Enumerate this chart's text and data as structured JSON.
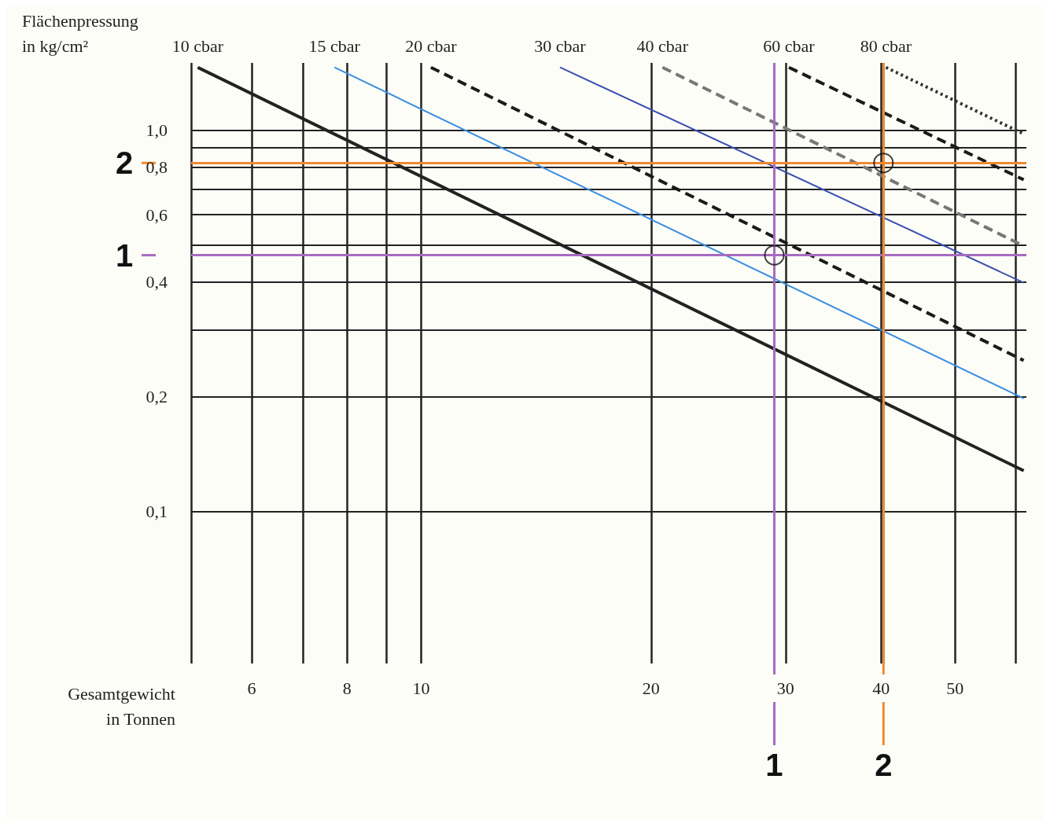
{
  "chart_data": {
    "type": "line",
    "xlabel": "Gesamtgewicht\nin Tonnen",
    "ylabel": "Flächenpressung\nin kg/cm²",
    "log": "xy",
    "grid": true,
    "legend": false,
    "xlim": [
      5,
      62
    ],
    "ylim": [
      0.04,
      1.5
    ],
    "xticks": [
      {
        "value": 5,
        "label": null
      },
      6,
      {
        "value": 7,
        "label": null
      },
      8,
      {
        "value": 9,
        "label": null
      },
      10,
      20,
      30,
      40,
      50,
      {
        "value": 60,
        "label": null
      }
    ],
    "yticks": [
      {
        "value": 0.1,
        "label": "0,1"
      },
      {
        "value": 0.2,
        "label": "0,2"
      },
      {
        "value": 0.3,
        "label": null
      },
      {
        "value": 0.4,
        "label": "0,4"
      },
      {
        "value": 0.5,
        "label": null
      },
      {
        "value": 0.6,
        "label": "0,6"
      },
      {
        "value": 0.7,
        "label": null
      },
      {
        "value": 0.8,
        "label": "0,8"
      },
      {
        "value": 0.9,
        "label": null
      },
      {
        "value": 1.0,
        "label": "1,0"
      }
    ],
    "series": [
      {
        "name": "10 cbar",
        "color": "#222222",
        "line_style": "solid",
        "x": [
          5.1,
          61.5
        ],
        "values": [
          1.46,
          0.128
        ]
      },
      {
        "name": "15 cbar",
        "color": "#3a8ee0",
        "line_style": "solid",
        "x": [
          7.7,
          61.5
        ],
        "values": [
          1.46,
          0.198
        ]
      },
      {
        "name": "20 cbar",
        "color": "#1a1a1a",
        "line_style": "dashed",
        "x": [
          10.3,
          61.5
        ],
        "values": [
          1.46,
          0.249
        ]
      },
      {
        "name": "30 cbar",
        "color": "#3a4fb0",
        "line_style": "solid",
        "x": [
          15.2,
          61.5
        ],
        "values": [
          1.46,
          0.398
        ]
      },
      {
        "name": "40 cbar",
        "color": "#777777",
        "line_style": "dashed",
        "x": [
          20.7,
          61.5
        ],
        "values": [
          1.46,
          0.497
        ]
      },
      {
        "name": "60 cbar",
        "color": "#1a1a1a",
        "line_style": "dashed",
        "x": [
          30.3,
          61.5
        ],
        "values": [
          1.46,
          0.741
        ]
      },
      {
        "name": "80 cbar",
        "color": "#333333",
        "line_style": "dotted",
        "x": [
          40.6,
          61.5
        ],
        "values": [
          1.46,
          0.977
        ]
      },
      {
        "type": "scatter",
        "color": "#111111",
        "marker": "circle",
        "x": [
          29,
          40.3
        ],
        "values": [
          0.47,
          0.82
        ]
      }
    ],
    "ref_lines": [
      {
        "axis": "y",
        "value": 0.47,
        "color": "#a56cc1"
      },
      {
        "axis": "x",
        "value": 29,
        "color": "#a56cc1"
      },
      {
        "axis": "y",
        "value": 0.82,
        "color": "#f08a30"
      },
      {
        "axis": "x",
        "value": 40.3,
        "color": "#f08a30"
      }
    ],
    "annotations": [
      "1",
      "1",
      "2",
      "2"
    ]
  }
}
